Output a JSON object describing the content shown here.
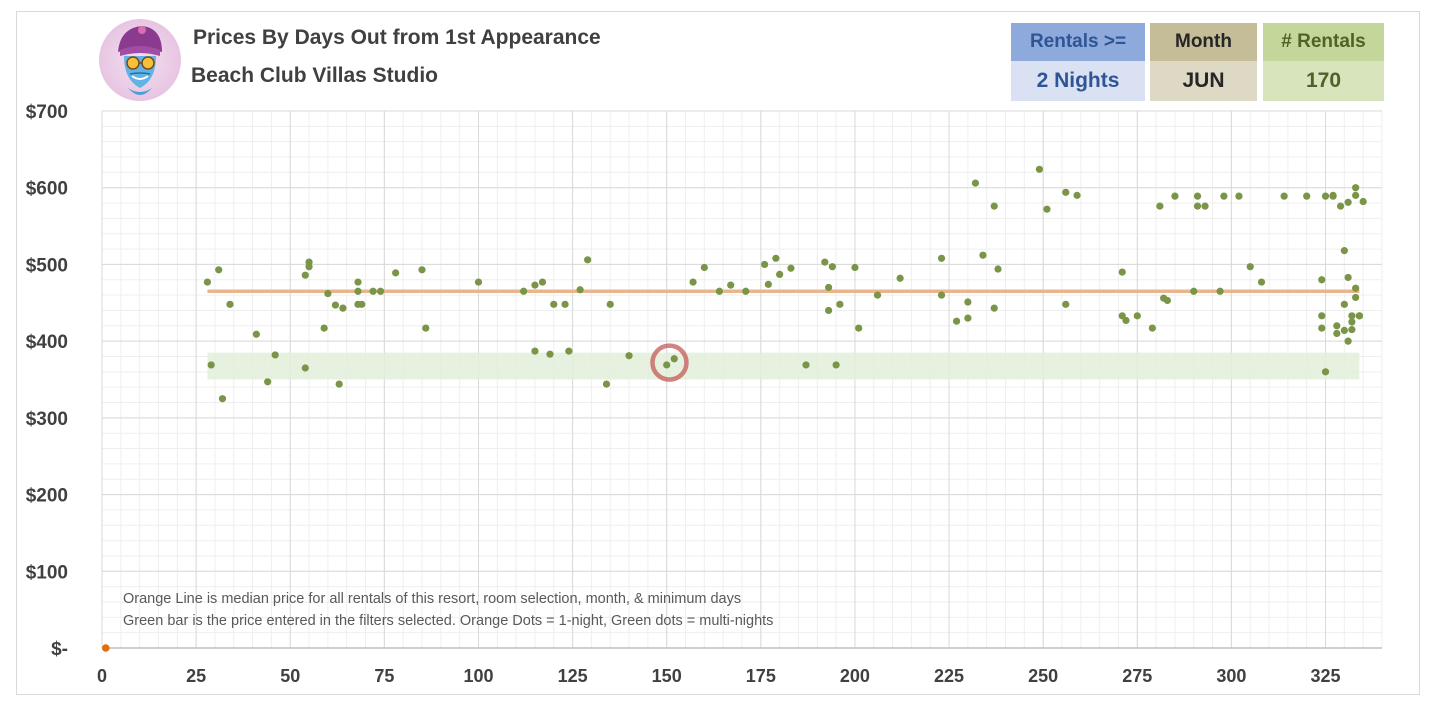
{
  "header": {
    "title": "Prices By Days Out from 1st Appearance",
    "subtitle": "Beach Club Villas Studio"
  },
  "filters": {
    "rentals_label": "Rentals >=",
    "rentals_value": "2 Nights",
    "month_label": "Month",
    "month_value": "JUN",
    "count_label": "# Rentals",
    "count_value": "170"
  },
  "notes": {
    "line1": "Orange Line is median price for all rentals of this resort, room selection, month, & minimum days",
    "line2": "Green bar is the price entered in the filters selected. Orange Dots = 1-night, Green dots = multi-nights"
  },
  "colors": {
    "median_line": "#E8B58C",
    "price_band": "#E2EFDA",
    "multi_night_dot": "#7A9448",
    "one_night_dot": "#E46C0A",
    "highlight_circle": "#C0504D",
    "rentals_head_bg": "#8EA9DB",
    "rentals_val_bg": "#D9E1F2",
    "month_head_bg": "#C4BD97",
    "month_val_bg": "#DDD9C4",
    "count_head_bg": "#C4D79B",
    "count_val_bg": "#D8E4BC"
  },
  "chart_data": {
    "type": "scatter",
    "xlabel": "",
    "ylabel": "",
    "xlim": [
      0,
      340
    ],
    "ylim": [
      0,
      700
    ],
    "x_ticks": [
      "0",
      "25",
      "50",
      "75",
      "100",
      "125",
      "150",
      "175",
      "200",
      "225",
      "250",
      "275",
      "300",
      "325"
    ],
    "y_ticks": [
      "$-",
      "$100",
      "$200",
      "$300",
      "$400",
      "$500",
      "$600",
      "$700"
    ],
    "grid": true,
    "median_price": 465,
    "median_x_range": [
      28,
      334
    ],
    "price_band": [
      350,
      385
    ],
    "price_band_x_range": [
      28,
      334
    ],
    "highlight": {
      "x": 151,
      "y": 372
    },
    "one_night_points": [
      [
        1,
        0
      ]
    ],
    "multi_night_points": [
      [
        28,
        477
      ],
      [
        29,
        369
      ],
      [
        31,
        493
      ],
      [
        32,
        325
      ],
      [
        34,
        448
      ],
      [
        41,
        409
      ],
      [
        44,
        347
      ],
      [
        46,
        382
      ],
      [
        54,
        486
      ],
      [
        54,
        365
      ],
      [
        55,
        497
      ],
      [
        55,
        503
      ],
      [
        59,
        417
      ],
      [
        60,
        462
      ],
      [
        62,
        447
      ],
      [
        63,
        344
      ],
      [
        64,
        443
      ],
      [
        68,
        477
      ],
      [
        68,
        465
      ],
      [
        68,
        448
      ],
      [
        69,
        448
      ],
      [
        72,
        465
      ],
      [
        74,
        465
      ],
      [
        78,
        489
      ],
      [
        85,
        493
      ],
      [
        86,
        417
      ],
      [
        100,
        477
      ],
      [
        112,
        465
      ],
      [
        115,
        473
      ],
      [
        115,
        387
      ],
      [
        117,
        477
      ],
      [
        119,
        383
      ],
      [
        120,
        448
      ],
      [
        123,
        448
      ],
      [
        124,
        387
      ],
      [
        127,
        467
      ],
      [
        129,
        506
      ],
      [
        134,
        344
      ],
      [
        135,
        448
      ],
      [
        140,
        381
      ],
      [
        150,
        369
      ],
      [
        152,
        377
      ],
      [
        157,
        477
      ],
      [
        160,
        496
      ],
      [
        164,
        465
      ],
      [
        167,
        473
      ],
      [
        171,
        465
      ],
      [
        176,
        500
      ],
      [
        177,
        474
      ],
      [
        179,
        508
      ],
      [
        180,
        487
      ],
      [
        183,
        495
      ],
      [
        187,
        369
      ],
      [
        192,
        503
      ],
      [
        193,
        440
      ],
      [
        193,
        470
      ],
      [
        194,
        497
      ],
      [
        195,
        369
      ],
      [
        196,
        448
      ],
      [
        200,
        496
      ],
      [
        201,
        417
      ],
      [
        206,
        460
      ],
      [
        212,
        482
      ],
      [
        223,
        508
      ],
      [
        223,
        460
      ],
      [
        227,
        426
      ],
      [
        230,
        430
      ],
      [
        230,
        451
      ],
      [
        232,
        606
      ],
      [
        234,
        512
      ],
      [
        237,
        576
      ],
      [
        237,
        443
      ],
      [
        238,
        494
      ],
      [
        249,
        624
      ],
      [
        251,
        572
      ],
      [
        256,
        594
      ],
      [
        256,
        448
      ],
      [
        259,
        590
      ],
      [
        271,
        490
      ],
      [
        271,
        433
      ],
      [
        272,
        427
      ],
      [
        275,
        433
      ],
      [
        279,
        417
      ],
      [
        281,
        576
      ],
      [
        282,
        456
      ],
      [
        283,
        453
      ],
      [
        285,
        589
      ],
      [
        290,
        465
      ],
      [
        291,
        576
      ],
      [
        291,
        589
      ],
      [
        293,
        576
      ],
      [
        297,
        465
      ],
      [
        298,
        589
      ],
      [
        302,
        589
      ],
      [
        305,
        497
      ],
      [
        308,
        477
      ],
      [
        314,
        589
      ],
      [
        320,
        589
      ],
      [
        324,
        480
      ],
      [
        324,
        417
      ],
      [
        324,
        433
      ],
      [
        325,
        360
      ],
      [
        325,
        589
      ],
      [
        327,
        589
      ],
      [
        327,
        590
      ],
      [
        328,
        420
      ],
      [
        328,
        410
      ],
      [
        329,
        576
      ],
      [
        330,
        518
      ],
      [
        330,
        448
      ],
      [
        330,
        414
      ],
      [
        331,
        581
      ],
      [
        331,
        400
      ],
      [
        331,
        483
      ],
      [
        332,
        425
      ],
      [
        332,
        433
      ],
      [
        332,
        415
      ],
      [
        333,
        590
      ],
      [
        333,
        457
      ],
      [
        333,
        600
      ],
      [
        333,
        469
      ],
      [
        334,
        433
      ],
      [
        334,
        433
      ],
      [
        335,
        582
      ]
    ]
  }
}
